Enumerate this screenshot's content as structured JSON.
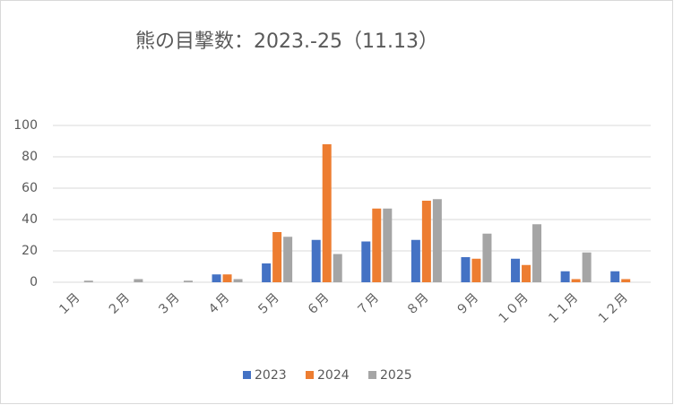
{
  "chart_data": {
    "type": "bar",
    "title": "熊の目撃数：2023.-25（11.13）",
    "categories": [
      "１月",
      "２月",
      "３月",
      "４月",
      "５月",
      "６月",
      "７月",
      "８月",
      "９月",
      "１０月",
      "１１月",
      "１２月"
    ],
    "series": [
      {
        "name": "2023",
        "color": "#4472c4",
        "values": [
          0,
          0,
          0,
          5,
          12,
          27,
          26,
          27,
          16,
          15,
          7,
          7
        ]
      },
      {
        "name": "2024",
        "color": "#ed7d31",
        "values": [
          0,
          0,
          0,
          5,
          32,
          88,
          47,
          52,
          15,
          11,
          2,
          2
        ]
      },
      {
        "name": "2025",
        "color": "#a5a5a5",
        "values": [
          1,
          2,
          1,
          2,
          29,
          18,
          47,
          53,
          31,
          37,
          19,
          0
        ]
      }
    ],
    "ylim": [
      0,
      100
    ],
    "yticks": [
      0,
      20,
      40,
      60,
      80,
      100
    ],
    "grid": true,
    "legend": "bottom"
  }
}
